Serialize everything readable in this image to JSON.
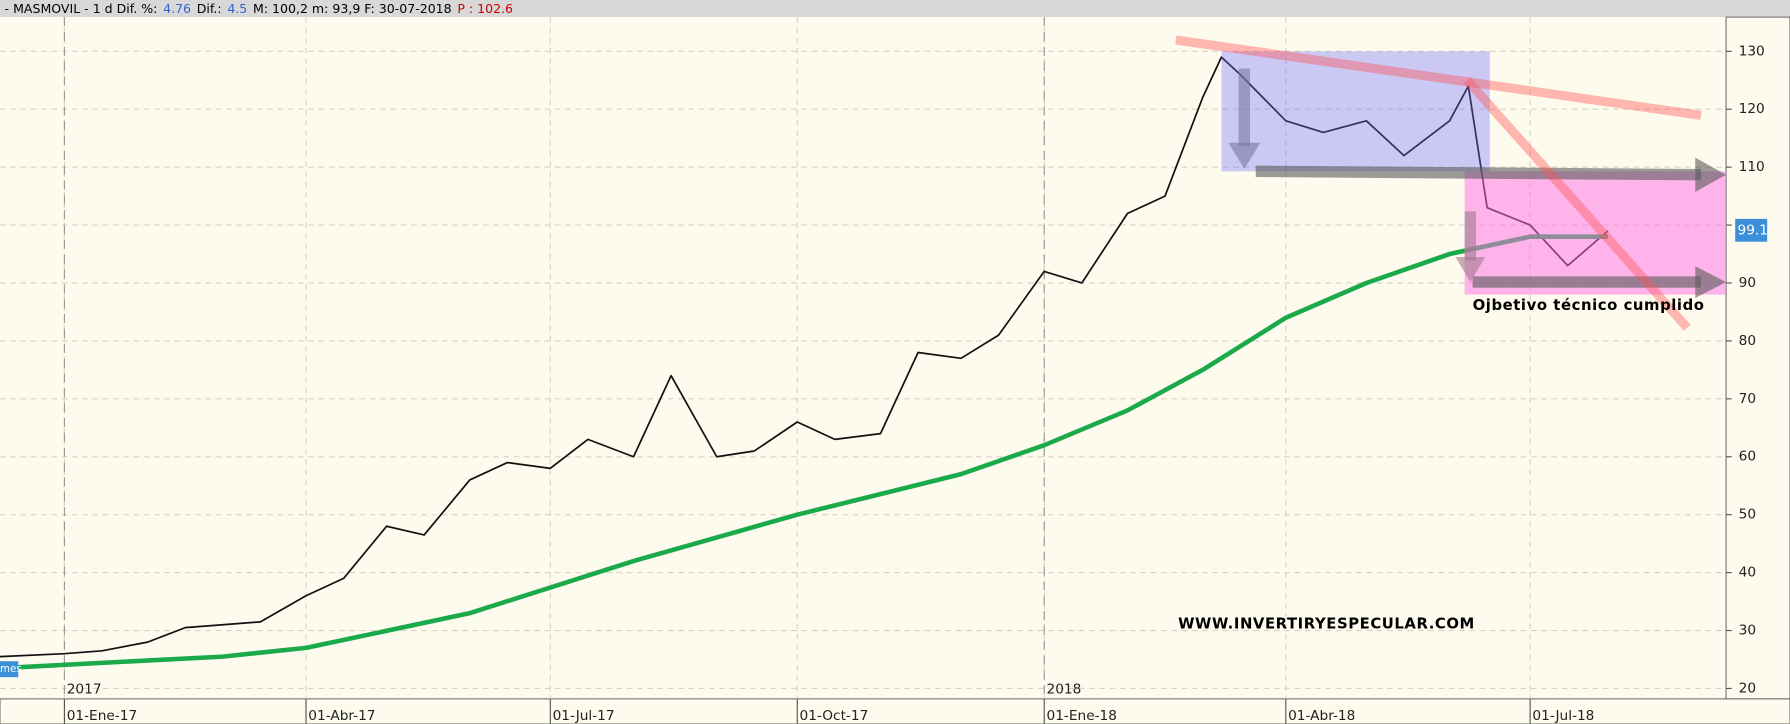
{
  "chart_data": {
    "type": "line",
    "header": [
      {
        "text": "- MASMOVIL -  1 d Dif. %:",
        "color": "#000000"
      },
      {
        "text": "4.76",
        "color": "#3366cc"
      },
      {
        "text": "Dif.:",
        "color": "#000000"
      },
      {
        "text": "4.5",
        "color": "#3366cc"
      },
      {
        "text": "M: 100,2  m: 93,9  F: 30-07-2018",
        "color": "#000000"
      },
      {
        "text": "P : 102.6",
        "color": "#cc0000"
      }
    ],
    "series": [
      {
        "name": "MASMOVIL",
        "color": "#111111",
        "x": [
          "2016-12-08",
          "2017-01-01",
          "2017-01-15",
          "2017-02-01",
          "2017-02-15",
          "2017-03-01",
          "2017-03-15",
          "2017-04-01",
          "2017-04-15",
          "2017-05-01",
          "2017-05-15",
          "2017-06-01",
          "2017-06-15",
          "2017-07-01",
          "2017-07-15",
          "2017-08-01",
          "2017-08-15",
          "2017-09-01",
          "2017-09-15",
          "2017-10-01",
          "2017-10-15",
          "2017-11-01",
          "2017-11-15",
          "2017-12-01",
          "2017-12-15",
          "2018-01-01",
          "2018-01-15",
          "2018-02-01",
          "2018-02-15",
          "2018-03-01",
          "2018-03-08",
          "2018-03-15",
          "2018-04-01",
          "2018-04-15",
          "2018-05-01",
          "2018-05-15",
          "2018-06-01",
          "2018-06-08",
          "2018-06-15",
          "2018-07-01",
          "2018-07-15",
          "2018-07-30"
        ],
        "values": [
          25.5,
          26,
          26.5,
          28,
          30.5,
          31,
          31.5,
          36,
          39,
          48,
          46.5,
          56,
          59,
          58,
          63,
          60,
          74,
          60,
          61,
          66,
          63,
          64,
          78,
          77,
          81,
          92,
          90,
          102,
          105,
          122,
          129,
          126,
          118,
          116,
          118,
          112,
          118,
          124,
          103,
          100,
          93,
          99
        ]
      },
      {
        "name": "mes",
        "color": "#1aaa4a",
        "x": [
          "2016-12-08",
          "2017-03-01",
          "2017-04-01",
          "2017-06-01",
          "2017-08-01",
          "2017-10-01",
          "2017-12-01",
          "2018-01-01",
          "2018-02-01",
          "2018-03-01",
          "2018-04-01",
          "2018-05-01",
          "2018-06-01",
          "2018-07-01",
          "2018-07-30"
        ],
        "values": [
          23.5,
          25.5,
          27,
          33,
          42,
          50,
          57,
          62,
          68,
          75,
          84,
          90,
          95,
          98,
          98
        ]
      }
    ],
    "xlim": [
      "2016-12-08",
      "2018-09-12"
    ],
    "xticks": [
      {
        "value": "2017-01-01",
        "label": "01-Ene-17"
      },
      {
        "value": "2017-04-01",
        "label": "01-Abr-17"
      },
      {
        "value": "2017-07-01",
        "label": "01-Jul-17"
      },
      {
        "value": "2017-10-01",
        "label": "01-Oct-17"
      },
      {
        "value": "2018-01-01",
        "label": "01-Ene-18"
      },
      {
        "value": "2018-04-01",
        "label": "01-Abr-18"
      },
      {
        "value": "2018-07-01",
        "label": "01-Jul-18"
      }
    ],
    "year_markers": [
      {
        "value": "2017-01-01",
        "label": "2017"
      },
      {
        "value": "2018-01-01",
        "label": "2018"
      }
    ],
    "ylim": [
      18.2,
      135.9
    ],
    "yticks": [
      20,
      30,
      40,
      50,
      60,
      70,
      80,
      90,
      100,
      110,
      120,
      130
    ],
    "grid": true,
    "last_label": {
      "value": 99.1,
      "label": "99.1"
    },
    "annotations": [
      "Ojbetivo técnico cumplido",
      "WWW.INVERTIRYESPECULAR.COM"
    ]
  }
}
